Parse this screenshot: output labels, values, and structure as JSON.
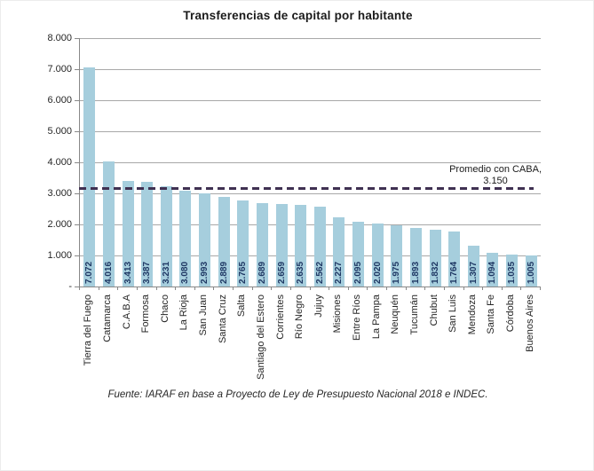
{
  "title": "Transferencias de capital por habitante",
  "chart_data": {
    "type": "bar",
    "title": "Transferencias de capital por habitante",
    "categories": [
      "Tierra del Fuego",
      "Catamarca",
      "C.A.B.A",
      "Formosa",
      "Chaco",
      "La Rioja",
      "San Juan",
      "Santa Cruz",
      "Salta",
      "Santiago del Estero",
      "Corrientes",
      "Río Negro",
      "Jujuy",
      "Misiones",
      "Entre Ríos",
      "La Pampa",
      "Neuquén",
      "Tucumán",
      "Chubut",
      "San Luis",
      "Mendoza",
      "Santa Fe",
      "Córdoba",
      "Buenos Aires"
    ],
    "values": [
      7072,
      4016,
      3413,
      3387,
      3231,
      3080,
      2993,
      2889,
      2765,
      2689,
      2659,
      2635,
      2562,
      2227,
      2095,
      2020,
      1975,
      1893,
      1832,
      1764,
      1307,
      1094,
      1035,
      1005
    ],
    "value_labels": [
      "7.072",
      "4.016",
      "3.413",
      "3.387",
      "3.231",
      "3.080",
      "2.993",
      "2.889",
      "2.765",
      "2.689",
      "2.659",
      "2.635",
      "2.562",
      "2.227",
      "2.095",
      "2.020",
      "1.975",
      "1.893",
      "1.832",
      "1.764",
      "1.307",
      "1.094",
      "1.035",
      "1.005"
    ],
    "y_ticks": [
      "8.000",
      "7.000",
      "6.000",
      "5.000",
      "4.000",
      "3.000",
      "2.000",
      "1.000",
      "-"
    ],
    "ylim": [
      0,
      8000
    ],
    "grid": true,
    "legend": "none",
    "bar_color": "#a6cedd",
    "value_label_color": "#1f3864",
    "reference_line": {
      "value": 3150,
      "label_line1": "Promedio con CABA,",
      "label_line2": "3.150",
      "color": "#403152",
      "style": "dashed"
    }
  },
  "footer": {
    "source": "Fuente: IARAF en base a Proyecto de Ley de Presupuesto Nacional 2018 e INDEC."
  }
}
